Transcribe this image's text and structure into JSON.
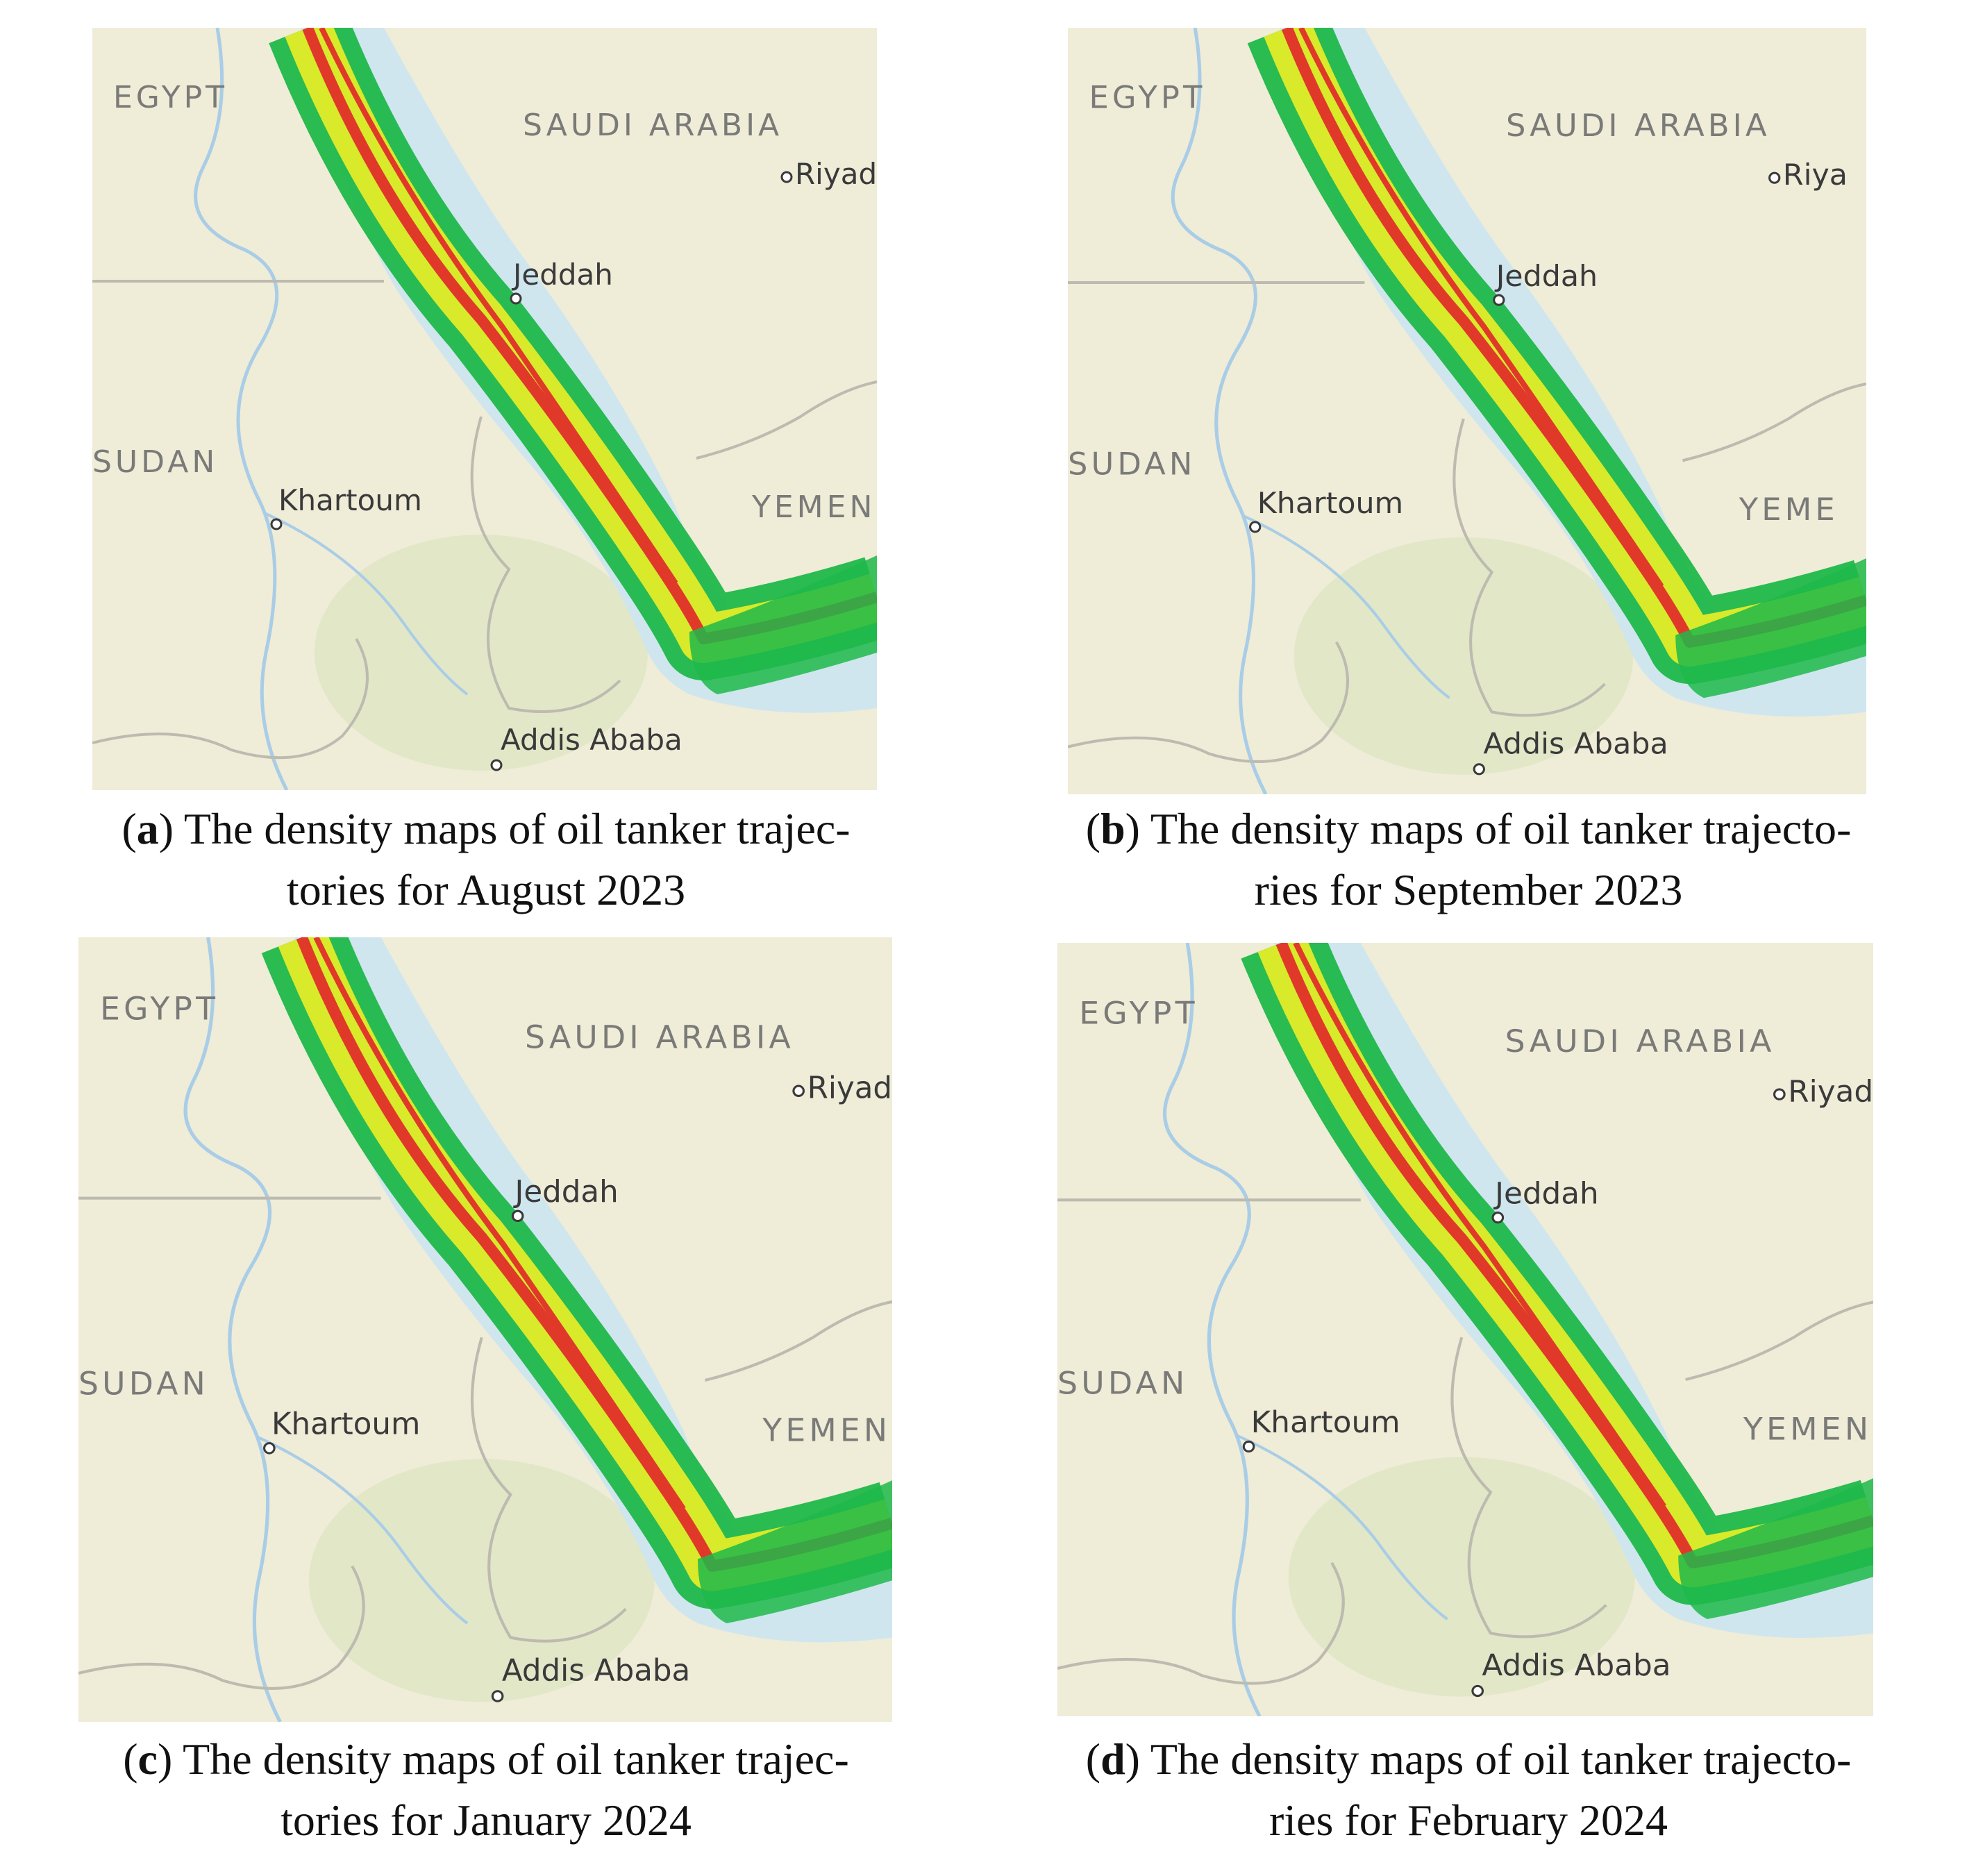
{
  "panels": [
    {
      "id": "a",
      "caption_letter": "a",
      "caption_line1": "The density maps of oil tanker trajec-",
      "caption_line2": "tories for August 2023",
      "labels": {
        "egypt": "EGYPT",
        "saudi": "SAUDI ARABIA",
        "riyadh": "Riyad",
        "jeddah": "Jeddah",
        "sudan": "SUDAN",
        "khartoum": "Khartoum",
        "yemen": "YEMEN",
        "addis": "Addis Ababa"
      }
    },
    {
      "id": "b",
      "caption_letter": "b",
      "caption_line1": "The density maps of oil tanker trajecto-",
      "caption_line2": "ries for September 2023",
      "labels": {
        "egypt": "EGYPT",
        "saudi": "SAUDI ARABIA",
        "riyadh": "Riya",
        "jeddah": "Jeddah",
        "sudan": "SUDAN",
        "khartoum": "Khartoum",
        "yemen": "YEME",
        "addis": "Addis Ababa"
      }
    },
    {
      "id": "c",
      "caption_letter": "c",
      "caption_line1": "The density maps of oil tanker trajec-",
      "caption_line2": "tories for January 2024",
      "labels": {
        "egypt": "EGYPT",
        "saudi": "SAUDI ARABIA",
        "riyadh": "Riyad",
        "jeddah": "Jeddah",
        "sudan": "SUDAN",
        "khartoum": "Khartoum",
        "yemen": "YEMEN",
        "addis": "Addis Ababa"
      }
    },
    {
      "id": "d",
      "caption_letter": "d",
      "caption_line1": "The density maps of oil tanker trajecto-",
      "caption_line2": "ries for February 2024",
      "labels": {
        "egypt": "EGYPT",
        "saudi": "SAUDI ARABIA",
        "riyadh": "Riyad",
        "jeddah": "Jeddah",
        "sudan": "SUDAN",
        "khartoum": "Khartoum",
        "yemen": "YEMEN",
        "addis": "Addis Ababa"
      }
    }
  ],
  "colors": {
    "land": "#efecd8",
    "sea": "#cfe6ee",
    "river": "#a9cde6",
    "border": "#bdbbb0",
    "label": "#7a7a78",
    "city": "#3a3a3a",
    "density_low": "#1fb84a",
    "density_mid": "#d8ea2a",
    "density_high": "#e0392a"
  }
}
